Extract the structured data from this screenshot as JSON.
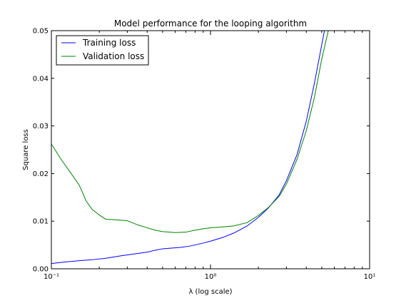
{
  "chart_data": {
    "type": "line",
    "title": "Model performance for the looping algorithm",
    "xlabel": "λ (log scale)",
    "ylabel": "Square loss",
    "xscale": "log",
    "xlim": [
      0.1,
      10
    ],
    "ylim": [
      0,
      0.05
    ],
    "grid": false,
    "legend_position": "top-left",
    "x_tick_labels": [
      "10⁻¹",
      "10⁰",
      "10¹"
    ],
    "x_ticks": [
      0.1,
      1,
      10
    ],
    "y_ticks": [
      0.0,
      0.01,
      0.02,
      0.03,
      0.04,
      0.05
    ],
    "y_tick_labels": [
      "0.00",
      "0.01",
      "0.02",
      "0.03",
      "0.04",
      "0.05"
    ],
    "series": [
      {
        "name": "Training loss",
        "color": "#0000ff",
        "x": [
          0.1,
          0.12,
          0.15,
          0.18,
          0.22,
          0.27,
          0.33,
          0.4,
          0.45,
          0.5,
          0.55,
          0.65,
          0.75,
          0.9,
          1.0,
          1.2,
          1.4,
          1.7,
          2.0,
          2.3,
          2.7,
          3.0,
          3.5,
          4.0,
          4.5,
          5.0,
          5.2
        ],
        "y": [
          0.0011,
          0.0014,
          0.0017,
          0.0019,
          0.0022,
          0.0027,
          0.0031,
          0.0035,
          0.0039,
          0.0042,
          0.0043,
          0.0045,
          0.0048,
          0.0054,
          0.0058,
          0.0066,
          0.0075,
          0.009,
          0.0108,
          0.0127,
          0.0155,
          0.0185,
          0.024,
          0.031,
          0.039,
          0.047,
          0.05
        ]
      },
      {
        "name": "Validation loss",
        "color": "#008000",
        "x": [
          0.1,
          0.115,
          0.13,
          0.15,
          0.165,
          0.18,
          0.2,
          0.22,
          0.25,
          0.3,
          0.35,
          0.4,
          0.45,
          0.5,
          0.55,
          0.6,
          0.7,
          0.8,
          0.9,
          1.0,
          1.2,
          1.4,
          1.7,
          2.0,
          2.3,
          2.7,
          3.0,
          3.5,
          4.0,
          4.5,
          5.0,
          5.5
        ],
        "y": [
          0.0262,
          0.023,
          0.0205,
          0.0175,
          0.0143,
          0.0125,
          0.0113,
          0.0104,
          0.0103,
          0.0101,
          0.0092,
          0.0086,
          0.0081,
          0.0078,
          0.0077,
          0.0076,
          0.0077,
          0.0081,
          0.0084,
          0.0086,
          0.0088,
          0.009,
          0.0097,
          0.0112,
          0.0128,
          0.0152,
          0.0178,
          0.023,
          0.029,
          0.036,
          0.044,
          0.05
        ]
      }
    ]
  }
}
